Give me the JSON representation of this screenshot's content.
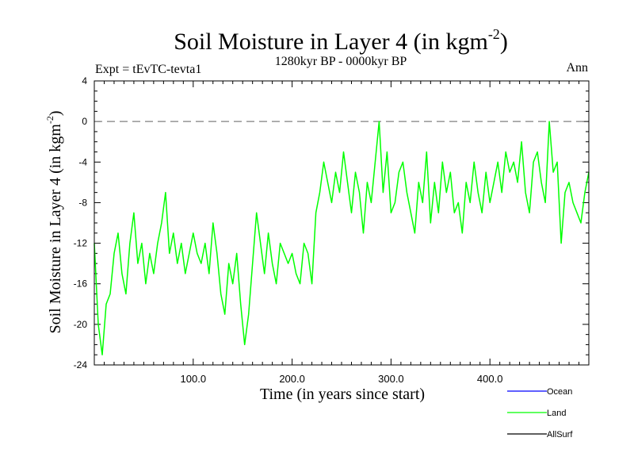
{
  "chart_data": {
    "type": "line",
    "title": "Soil Moisture in Layer 4 (in kgm",
    "title_sup": "-2",
    "title_close": ")",
    "subtitle": "1280kyr BP - 0000kyr BP",
    "experiment": "Expt = tEvTC-tevta1",
    "season": "Ann",
    "xlabel": "Time (in years since start)",
    "ylabel": "Soil Moisture in Layer 4 (in kgm",
    "ylabel_sup": "-2",
    "ylabel_close": ")",
    "xlim": [
      0,
      500
    ],
    "ylim": [
      -24,
      4
    ],
    "x_ticks": [
      {
        "value": 100,
        "label": "100.0"
      },
      {
        "value": 200,
        "label": "200.0"
      },
      {
        "value": 300,
        "label": "300.0"
      },
      {
        "value": 400,
        "label": "400.0"
      }
    ],
    "y_ticks": [
      {
        "value": 4,
        "label": "4"
      },
      {
        "value": 0,
        "label": "0"
      },
      {
        "value": -4,
        "label": "-4"
      },
      {
        "value": -8,
        "label": "-8"
      },
      {
        "value": -12,
        "label": "-12"
      },
      {
        "value": -16,
        "label": "-16"
      },
      {
        "value": -20,
        "label": "-20"
      },
      {
        "value": -24,
        "label": "-24"
      }
    ],
    "reference_line": {
      "y": 0,
      "style": "dashed"
    },
    "legend": [
      {
        "name": "Ocean",
        "color": "#0000ff"
      },
      {
        "name": "Land",
        "color": "#00ff00"
      },
      {
        "name": "AllSurf",
        "color": "#000000"
      }
    ],
    "series": [
      {
        "name": "Land",
        "color": "#00ff00",
        "x": [
          0,
          4,
          8,
          12,
          16,
          20,
          24,
          28,
          32,
          36,
          40,
          44,
          48,
          52,
          56,
          60,
          64,
          68,
          72,
          76,
          80,
          84,
          88,
          92,
          96,
          100,
          104,
          108,
          112,
          116,
          120,
          124,
          128,
          132,
          136,
          140,
          144,
          148,
          152,
          156,
          160,
          164,
          168,
          172,
          176,
          180,
          184,
          188,
          192,
          196,
          200,
          204,
          208,
          212,
          216,
          220,
          224,
          228,
          232,
          236,
          240,
          244,
          248,
          252,
          256,
          260,
          264,
          268,
          272,
          276,
          280,
          284,
          288,
          292,
          296,
          300,
          304,
          308,
          312,
          316,
          320,
          324,
          328,
          332,
          336,
          340,
          344,
          348,
          352,
          356,
          360,
          364,
          368,
          372,
          376,
          380,
          384,
          388,
          392,
          396,
          400,
          404,
          408,
          412,
          416,
          420,
          424,
          428,
          432,
          436,
          440,
          444,
          448,
          452,
          456,
          460,
          464,
          468,
          472,
          476,
          480,
          484,
          488,
          492,
          496,
          500
        ],
        "values": [
          -12,
          -20,
          -23,
          -18,
          -17,
          -13,
          -11,
          -15,
          -17,
          -12,
          -9,
          -14,
          -12,
          -16,
          -13,
          -15,
          -12,
          -10,
          -7,
          -13,
          -11,
          -14,
          -12,
          -15,
          -13,
          -11,
          -13,
          -14,
          -12,
          -15,
          -10,
          -13,
          -17,
          -19,
          -14,
          -16,
          -13,
          -18,
          -22,
          -19,
          -14,
          -9,
          -12,
          -15,
          -11,
          -14,
          -16,
          -12,
          -13,
          -14,
          -13,
          -15,
          -16,
          -12,
          -13,
          -16,
          -9,
          -7,
          -4,
          -6,
          -8,
          -5,
          -7,
          -3,
          -6,
          -9,
          -5,
          -7,
          -11,
          -6,
          -8,
          -4,
          0,
          -7,
          -3,
          -9,
          -8,
          -5,
          -4,
          -7,
          -9,
          -11,
          -6,
          -8,
          -3,
          -10,
          -6,
          -9,
          -4,
          -7,
          -5,
          -9,
          -8,
          -11,
          -6,
          -8,
          -4,
          -7,
          -9,
          -5,
          -8,
          -6,
          -4,
          -7,
          -3,
          -5,
          -4,
          -6,
          -2,
          -7,
          -9,
          -4,
          -3,
          -6,
          -8,
          0,
          -5,
          -4,
          -12,
          -7,
          -6,
          -8,
          -9,
          -10,
          -7,
          -5
        ]
      }
    ]
  }
}
